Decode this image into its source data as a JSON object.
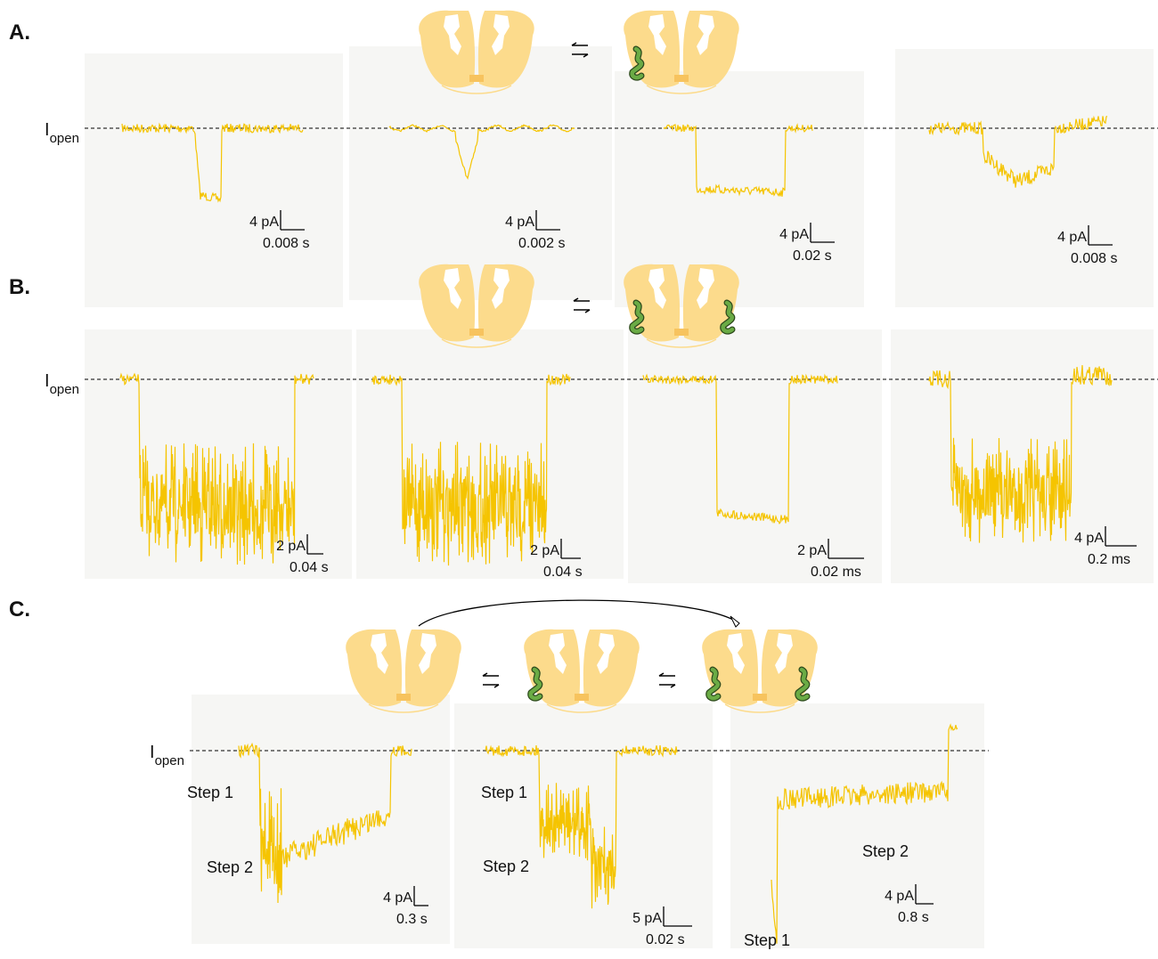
{
  "panels": [
    {
      "label": "A.",
      "open_label": {
        "main": "I",
        "sub": "open"
      },
      "traces": [
        {
          "scale_current": "4 pA",
          "scale_time": "0.008 s"
        },
        {
          "scale_current": "4 pA",
          "scale_time": "0.002 s"
        },
        {
          "scale_current": "4 pA",
          "scale_time": "0.02 s"
        },
        {
          "scale_current": "4 pA",
          "scale_time": "0.008 s"
        }
      ]
    },
    {
      "label": "B.",
      "open_label": {
        "main": "I",
        "sub": "open"
      },
      "traces": [
        {
          "scale_current": "2 pA",
          "scale_time": "0.04 s"
        },
        {
          "scale_current": "2 pA",
          "scale_time": "0.04 s"
        },
        {
          "scale_current": "2 pA",
          "scale_time": "0.02 ms"
        },
        {
          "scale_current": "4 pA",
          "scale_time": "0.2 ms"
        }
      ]
    },
    {
      "label": "C.",
      "open_label": {
        "main": "I",
        "sub": "open"
      },
      "traces": [
        {
          "scale_current": "4 pA",
          "scale_time": "0.3 s",
          "steps": [
            "Step 1",
            "Step 2"
          ]
        },
        {
          "scale_current": "5 pA",
          "scale_time": "0.02 s",
          "steps": [
            "Step 1",
            "Step 2"
          ]
        },
        {
          "scale_current": "4 pA",
          "scale_time": "0.8 s",
          "steps": [
            "Step 2",
            "Step 1"
          ]
        }
      ]
    }
  ]
}
